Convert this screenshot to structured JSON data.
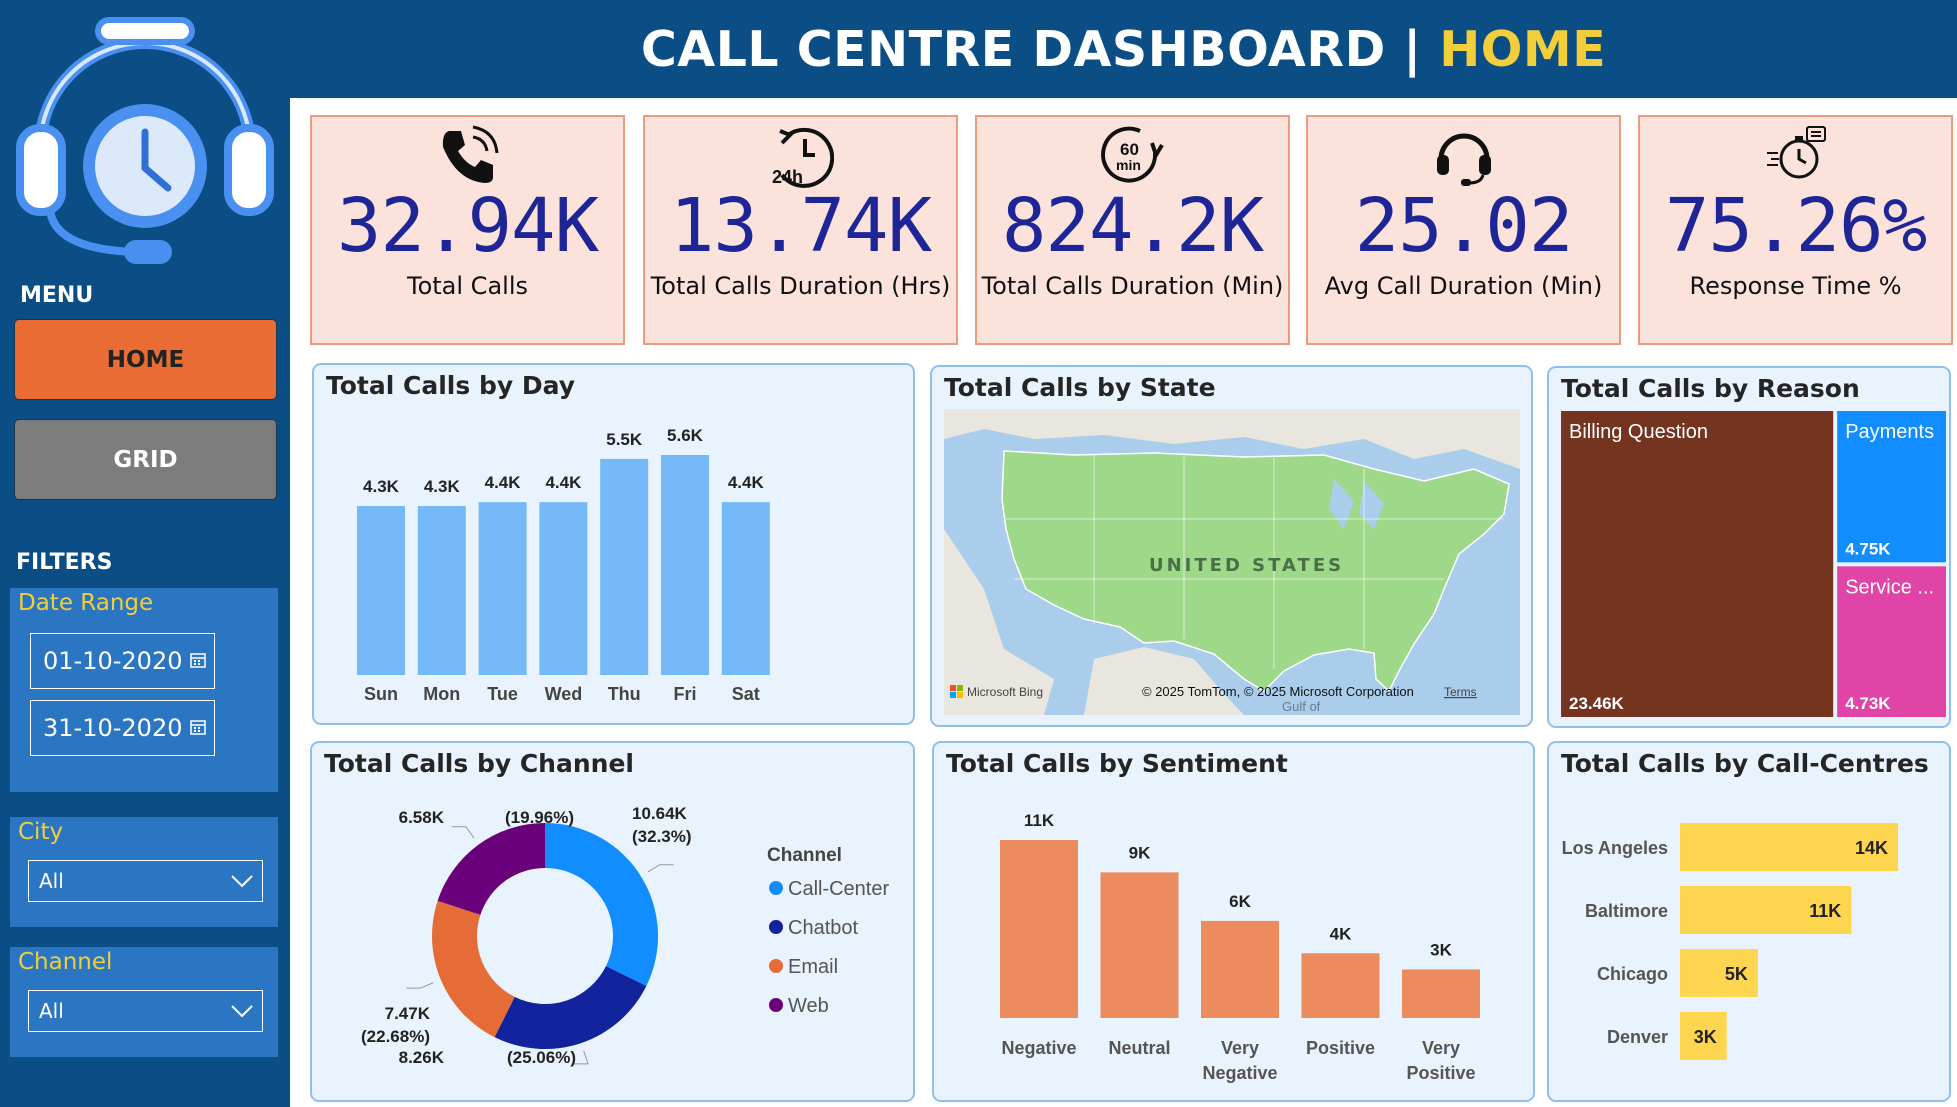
{
  "header": {
    "title_main": "CALL CENTRE DASHBOARD |",
    "title_page": "HOME"
  },
  "sidebar": {
    "menu_label": "MENU",
    "nav": {
      "home": "HOME",
      "grid": "GRID"
    },
    "filters_label": "FILTERS",
    "date_range": {
      "label": "Date Range",
      "start": "01-10-2020",
      "end": "31-10-2020"
    },
    "city": {
      "label": "City",
      "value": "All"
    },
    "channel": {
      "label": "Channel",
      "value": "All"
    }
  },
  "kpis": [
    {
      "icon": "phone-icon",
      "value": "32.94K",
      "label": "Total Calls"
    },
    {
      "icon": "24h-clock-icon",
      "value": "13.74K",
      "label": "Total Calls Duration (Hrs)"
    },
    {
      "icon": "60-min-timer-icon",
      "value": "824.2K",
      "label": "Total Calls Duration (Min)"
    },
    {
      "icon": "headset-icon",
      "value": "25.02",
      "label": "Avg Call Duration (Min)"
    },
    {
      "icon": "stopwatch-icon",
      "value": "75.26%",
      "label": "Response Time %"
    }
  ],
  "colors": {
    "header_bg": "#0b4d85",
    "accent_yellow": "#f2cf3a",
    "home_btn": "#e86c34",
    "kpi_bg": "#fbe3dc",
    "kpi_value": "#1e2597",
    "panel_bg": "#e9f3fd",
    "day_bar": "#74b8f7",
    "sentiment_bar": "#ec8b5e",
    "centre_bar": "#fdd54f"
  },
  "charts": {
    "by_day": {
      "title": "Total Calls by Day"
    },
    "by_state": {
      "title": "Total Calls by State",
      "map_label": "UNITED STATES",
      "bing": "Microsoft Bing",
      "copyright": "© 2025 TomTom, © 2025 Microsoft Corporation",
      "terms": "Terms",
      "gulf": "Gulf of"
    },
    "by_reason": {
      "title": "Total Calls by Reason"
    },
    "by_channel": {
      "title": "Total Calls by Channel",
      "legend_title": "Channel"
    },
    "by_sentiment": {
      "title": "Total Calls by Sentiment"
    },
    "by_centre": {
      "title": "Total Calls by Call-Centres"
    }
  },
  "chart_data": [
    {
      "type": "bar",
      "title": "Total Calls by Day",
      "categories": [
        "Sun",
        "Mon",
        "Tue",
        "Wed",
        "Thu",
        "Fri",
        "Sat"
      ],
      "values": [
        4300,
        4300,
        4400,
        4400,
        5500,
        5600,
        4400
      ],
      "labels": [
        "4.3K",
        "4.3K",
        "4.4K",
        "4.4K",
        "5.5K",
        "5.6K",
        "4.4K"
      ]
    },
    {
      "type": "treemap",
      "title": "Total Calls by Reason",
      "categories": [
        "Billing Question",
        "Payments",
        "Service ..."
      ],
      "values": [
        23460,
        4750,
        4730
      ],
      "labels": [
        "23.46K",
        "4.75K",
        "4.73K"
      ],
      "colors": [
        "#74341f",
        "#118dff",
        "#e044a7"
      ]
    },
    {
      "type": "pie",
      "title": "Total Calls by Channel",
      "legend_title": "Channel",
      "categories": [
        "Call-Center",
        "Chatbot",
        "Email",
        "Web"
      ],
      "values": [
        10640,
        8260,
        7470,
        6580
      ],
      "labels": [
        "10.64K",
        "8.26K",
        "7.47K",
        "6.58K"
      ],
      "percents": [
        "(32.3%)",
        "(25.06%)",
        "(22.68%)",
        "(19.96%)"
      ],
      "colors": [
        "#118dff",
        "#12239e",
        "#e66c37",
        "#6b007b"
      ],
      "legend": "right"
    },
    {
      "type": "bar",
      "title": "Total Calls by Sentiment",
      "categories": [
        "Negative",
        "Neutral",
        "Very Negative",
        "Positive",
        "Very Positive"
      ],
      "values": [
        11000,
        9000,
        6000,
        4000,
        3000
      ],
      "labels": [
        "11K",
        "9K",
        "6K",
        "4K",
        "3K"
      ]
    },
    {
      "type": "bar",
      "orientation": "horizontal",
      "title": "Total Calls by Call-Centres",
      "categories": [
        "Los Angeles",
        "Baltimore",
        "Chicago",
        "Denver"
      ],
      "values": [
        14000,
        11000,
        5000,
        3000
      ],
      "labels": [
        "14K",
        "11K",
        "5K",
        "3K"
      ]
    }
  ]
}
